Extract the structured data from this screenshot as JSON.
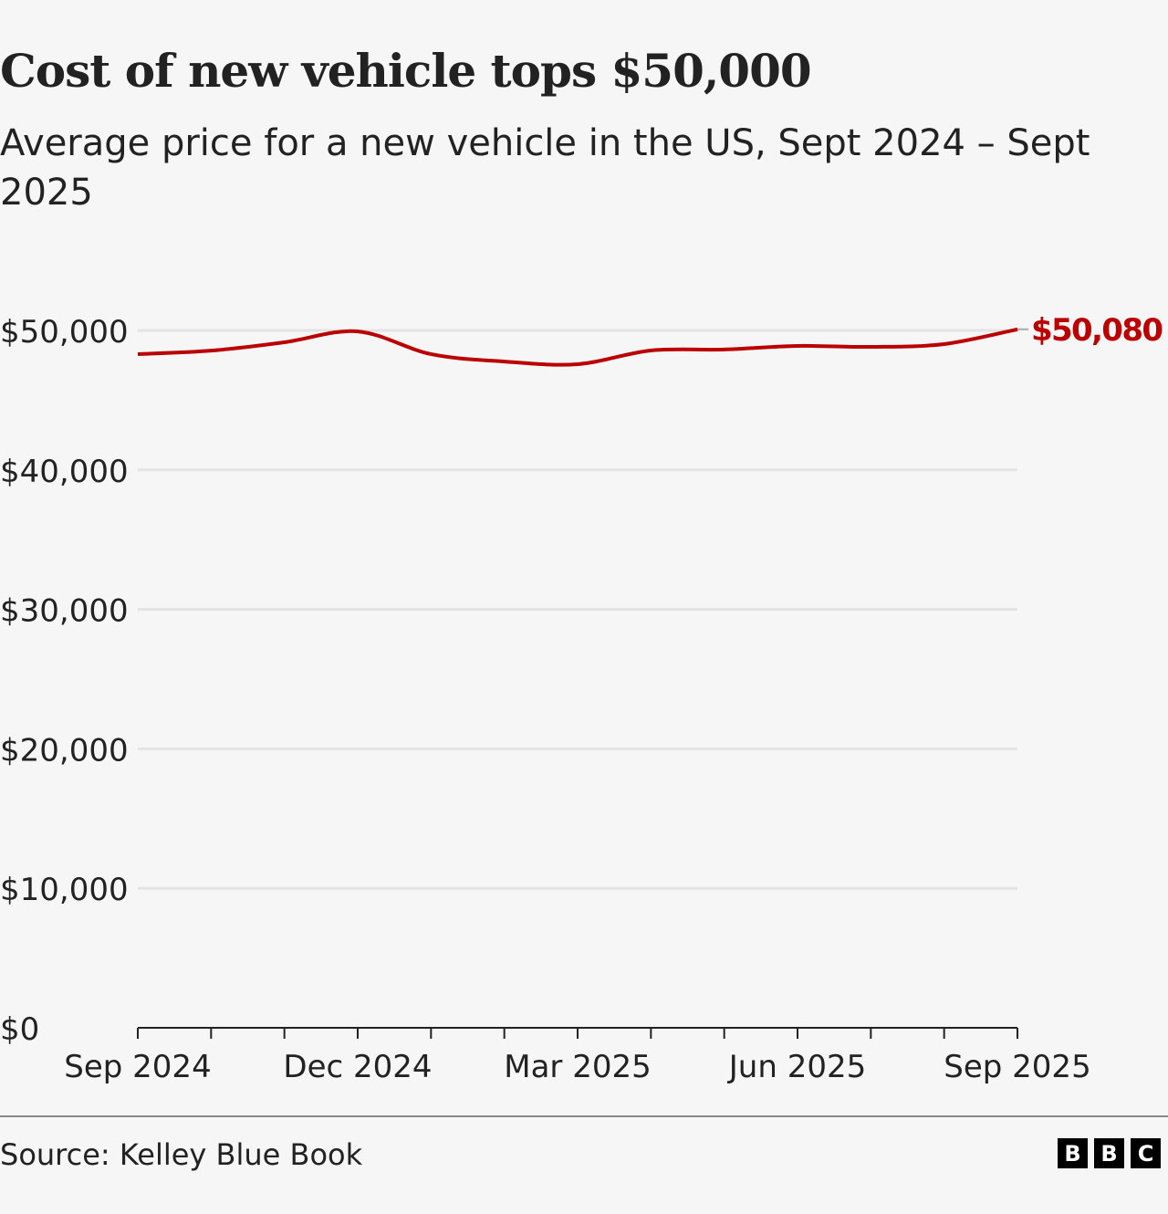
{
  "chart_data": {
    "type": "line",
    "title": "Cost of new vehicle tops $50,000",
    "subtitle": "Average price for a new vehicle in the US, Sept 2024 – Sept 2025",
    "x": [
      "Sep 2024",
      "Oct 2024",
      "Nov 2024",
      "Dec 2024",
      "Jan 2025",
      "Feb 2025",
      "Mar 2025",
      "Apr 2025",
      "May 2025",
      "Jun 2025",
      "Jul 2025",
      "Aug 2025",
      "Sep 2025"
    ],
    "series": [
      {
        "values": [
          48300,
          48550,
          49150,
          49930,
          48300,
          47770,
          47580,
          48560,
          48630,
          48890,
          48820,
          49020,
          50080
        ],
        "color": "#bb0000"
      }
    ],
    "end_label": "$50,080",
    "ylim": [
      0,
      50000
    ],
    "y_ticks": [
      0,
      10000,
      20000,
      30000,
      40000,
      50000
    ],
    "y_tick_labels": [
      "$0",
      "$10,000",
      "$20,000",
      "$30,000",
      "$40,000",
      "$50,000"
    ],
    "x_tick_labels": [
      "Sep 2024",
      "Dec 2024",
      "Mar 2025",
      "Jun 2025",
      "Sep 2025"
    ],
    "grid": true
  },
  "source": "Source: Kelley Blue Book",
  "logo": [
    "B",
    "B",
    "C"
  ]
}
